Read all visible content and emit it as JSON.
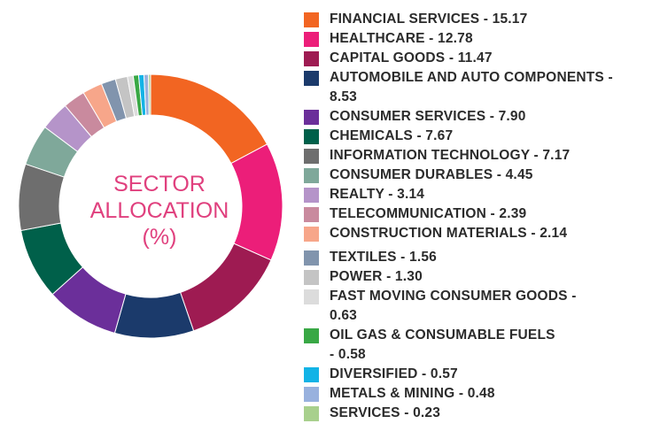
{
  "chart_data": {
    "type": "pie",
    "title_lines": [
      "SECTOR",
      "ALLOCATION",
      "(%)"
    ],
    "legend_position": "right",
    "slices": [
      {
        "label": "FINANCIAL SERVICES",
        "value": 15.17,
        "color": "#f26522",
        "legend_lines": [
          "FINANCIAL SERVICES - 15.17"
        ]
      },
      {
        "label": "HEALTHCARE",
        "value": 12.78,
        "color": "#ec1e79",
        "legend_lines": [
          "HEALTHCARE - 12.78"
        ]
      },
      {
        "label": "CAPITAL GOODS",
        "value": 11.47,
        "color": "#9e1b52",
        "legend_lines": [
          "CAPITAL GOODS - 11.47"
        ]
      },
      {
        "label": "AUTOMOBILE AND AUTO COMPONENTS",
        "value": 8.53,
        "color": "#1b3a6b",
        "legend_lines": [
          "AUTOMOBILE AND AUTO COMPONENTS  -",
          "8.53"
        ]
      },
      {
        "label": "CONSUMER SERVICES",
        "value": 7.9,
        "color": "#6b2f9a",
        "legend_lines": [
          "CONSUMER SERVICES - 7.90"
        ]
      },
      {
        "label": "CHEMICALS",
        "value": 7.67,
        "color": "#00604a",
        "legend_lines": [
          "CHEMICALS - 7.67"
        ]
      },
      {
        "label": "INFORMATION TECHNOLOGY",
        "value": 7.17,
        "color": "#6e6e6e",
        "legend_lines": [
          "INFORMATION TECHNOLOGY  - 7.17"
        ]
      },
      {
        "label": "CONSUMER DURABLES",
        "value": 4.45,
        "color": "#7fa89a",
        "legend_lines": [
          "CONSUMER DURABLES - 4.45"
        ]
      },
      {
        "label": "REALTY",
        "value": 3.14,
        "color": "#b594c9",
        "legend_lines": [
          "REALTY - 3.14"
        ]
      },
      {
        "label": "TELECOMMUNICATION",
        "value": 2.39,
        "color": "#c98a9e",
        "legend_lines": [
          "TELECOMMUNICATION  - 2.39"
        ]
      },
      {
        "label": "CONSTRUCTION MATERIALS",
        "value": 2.14,
        "color": "#f7a68a",
        "legend_lines": [
          "CONSTRUCTION MATERIALS - 2.14"
        ]
      },
      {
        "label": "TEXTILES",
        "value": 1.56,
        "color": "#8194ad",
        "legend_lines": [
          "TEXTILES - 1.56"
        ]
      },
      {
        "label": "POWER",
        "value": 1.3,
        "color": "#c4c4c4",
        "legend_lines": [
          "POWER - 1.30"
        ]
      },
      {
        "label": "FAST MOVING CONSUMER GOODS",
        "value": 0.63,
        "color": "#dcdcdc",
        "legend_lines": [
          "FAST MOVING CONSUMER GOODS  -",
          "0.63"
        ]
      },
      {
        "label": "OIL GAS & CONSUMABLE FUELS",
        "value": 0.58,
        "color": "#39a845",
        "legend_lines": [
          "OIL GAS & CONSUMABLE FUELS",
          "- 0.58"
        ]
      },
      {
        "label": "DIVERSIFIED",
        "value": 0.57,
        "color": "#12b3e6",
        "legend_lines": [
          "DIVERSIFIED - 0.57"
        ]
      },
      {
        "label": "METALS & MINING",
        "value": 0.48,
        "color": "#98b1de",
        "legend_lines": [
          "METALS & MINING - 0.48"
        ]
      },
      {
        "label": "SERVICES",
        "value": 0.23,
        "color": "#a8d08d",
        "legend_lines": [
          "SERVICES - 0.23"
        ]
      }
    ]
  }
}
